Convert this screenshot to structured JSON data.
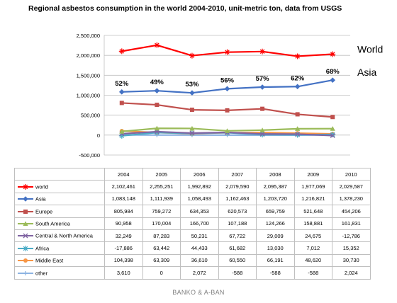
{
  "chart_data": {
    "type": "line",
    "title": "Regional asbestos consumption in the world 2004-2010,  unit-metric ton, data from USGS",
    "x": [
      "2004",
      "2005",
      "2006",
      "2007",
      "2008",
      "2009",
      "2010"
    ],
    "ylim": [
      -500000,
      2500000
    ],
    "yticks": [
      "2,500,000",
      "2,000,000",
      "1,500,000",
      "1,000,000",
      "500,000",
      "0",
      "-500,000"
    ],
    "ytick_values": [
      2500000,
      2000000,
      1500000,
      1000000,
      500000,
      0,
      -500000
    ],
    "grid": true,
    "series": [
      {
        "name": "world",
        "color": "#ff0000",
        "marker": "star",
        "values": [
          2102461,
          2255251,
          1992892,
          2079590,
          2095387,
          1977069,
          2029587
        ],
        "labels": [
          "2,102,461",
          "2,255,251",
          "1,992,892",
          "2,079,590",
          "2,095,387",
          "1,977,069",
          "2,029,587"
        ]
      },
      {
        "name": "Asia",
        "color": "#4472c4",
        "marker": "diamond",
        "values": [
          1083148,
          1111939,
          1058493,
          1162463,
          1203720,
          1216821,
          1378230
        ],
        "labels": [
          "1,083,148",
          "1,111,939",
          "1,058,493",
          "1,162,463",
          "1,203,720",
          "1,216,821",
          "1,378,230"
        ]
      },
      {
        "name": "Europe",
        "color": "#c0504d",
        "marker": "square",
        "values": [
          805984,
          759272,
          634353,
          620573,
          659759,
          521648,
          454206
        ],
        "labels": [
          "805,984",
          "759,272",
          "634,353",
          "620,573",
          "659,759",
          "521,648",
          "454,206"
        ]
      },
      {
        "name": "South America",
        "color": "#9bbb59",
        "marker": "triangle",
        "values": [
          90958,
          170004,
          166700,
          107188,
          124266,
          158881,
          161831
        ],
        "labels": [
          "90,958",
          "170,004",
          "166,700",
          "107,188",
          "124,266",
          "158,881",
          "161,831"
        ]
      },
      {
        "name": "Central & North America",
        "color": "#8064a2",
        "marker": "x",
        "values": [
          32249,
          87283,
          50231,
          67722,
          29009,
          24675,
          -12786
        ],
        "labels": [
          "32,249",
          "87,283",
          "50,231",
          "67,722",
          "29,009",
          "24,675",
          "-12,786"
        ]
      },
      {
        "name": "Africa",
        "color": "#4bacc6",
        "marker": "star",
        "values": [
          -17886,
          63442,
          44433,
          61682,
          13030,
          7012,
          15352
        ],
        "labels": [
          "-17,886",
          "63,442",
          "44,433",
          "61,682",
          "13,030",
          "7,012",
          "15,352"
        ]
      },
      {
        "name": "Middle East",
        "color": "#f79646",
        "marker": "circle",
        "values": [
          104398,
          63309,
          36610,
          60550,
          66191,
          48620,
          30730
        ],
        "labels": [
          "104,398",
          "63,309",
          "36,610",
          "60,550",
          "66,191",
          "48,620",
          "30,730"
        ]
      },
      {
        "name": "other",
        "color": "#8db3e2",
        "marker": "plus",
        "values": [
          3610,
          0,
          2072,
          -588,
          -588,
          -588,
          2024
        ],
        "labels": [
          "3,610",
          "0",
          "2,072",
          "-588",
          "-588",
          "-588",
          "2,024"
        ]
      }
    ],
    "asia_share_labels": [
      "52%",
      "49%",
      "53%",
      "56%",
      "57%",
      "62%",
      "68%"
    ],
    "end_labels": {
      "world": "World",
      "asia": "Asia"
    }
  },
  "footer": "BANKO & A-BAN"
}
